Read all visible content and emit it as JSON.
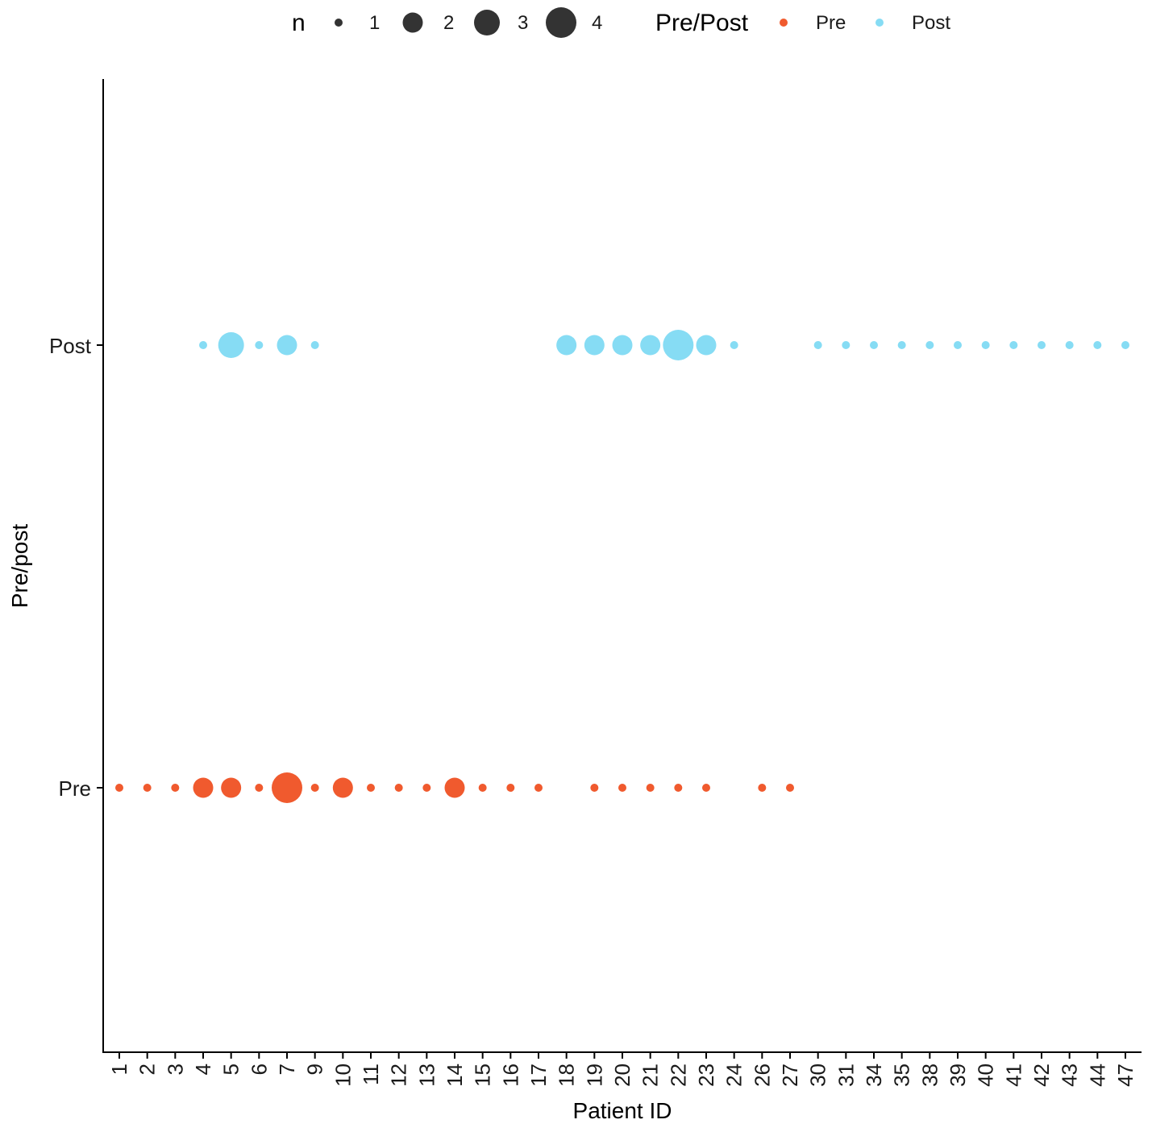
{
  "chart_data": {
    "type": "scatter",
    "title": "",
    "xlabel": "Patient ID",
    "ylabel": "Pre/post",
    "categories": [
      "1",
      "2",
      "3",
      "4",
      "5",
      "6",
      "7",
      "9",
      "10",
      "11",
      "12",
      "13",
      "14",
      "15",
      "16",
      "17",
      "18",
      "19",
      "20",
      "21",
      "22",
      "23",
      "24",
      "26",
      "27",
      "30",
      "31",
      "34",
      "35",
      "38",
      "39",
      "40",
      "41",
      "42",
      "43",
      "44",
      "47"
    ],
    "y_categories": [
      "Pre",
      "Post"
    ],
    "series": [
      {
        "name": "Pre",
        "color": "#f05a2e",
        "points": [
          {
            "x": "1",
            "n": 1
          },
          {
            "x": "2",
            "n": 1
          },
          {
            "x": "3",
            "n": 1
          },
          {
            "x": "4",
            "n": 2
          },
          {
            "x": "5",
            "n": 2
          },
          {
            "x": "6",
            "n": 1
          },
          {
            "x": "7",
            "n": 4
          },
          {
            "x": "9",
            "n": 1
          },
          {
            "x": "10",
            "n": 2
          },
          {
            "x": "11",
            "n": 1
          },
          {
            "x": "12",
            "n": 1
          },
          {
            "x": "13",
            "n": 1
          },
          {
            "x": "14",
            "n": 2
          },
          {
            "x": "15",
            "n": 1
          },
          {
            "x": "16",
            "n": 1
          },
          {
            "x": "17",
            "n": 1
          },
          {
            "x": "19",
            "n": 1
          },
          {
            "x": "20",
            "n": 1
          },
          {
            "x": "21",
            "n": 1
          },
          {
            "x": "22",
            "n": 1
          },
          {
            "x": "23",
            "n": 1
          },
          {
            "x": "26",
            "n": 1
          },
          {
            "x": "27",
            "n": 1
          }
        ]
      },
      {
        "name": "Post",
        "color": "#86dcf4",
        "points": [
          {
            "x": "4",
            "n": 1
          },
          {
            "x": "5",
            "n": 3
          },
          {
            "x": "6",
            "n": 1
          },
          {
            "x": "7",
            "n": 2
          },
          {
            "x": "9",
            "n": 1
          },
          {
            "x": "18",
            "n": 2
          },
          {
            "x": "19",
            "n": 2
          },
          {
            "x": "20",
            "n": 2
          },
          {
            "x": "21",
            "n": 2
          },
          {
            "x": "22",
            "n": 4
          },
          {
            "x": "23",
            "n": 2
          },
          {
            "x": "24",
            "n": 1
          },
          {
            "x": "30",
            "n": 1
          },
          {
            "x": "31",
            "n": 1
          },
          {
            "x": "34",
            "n": 1
          },
          {
            "x": "35",
            "n": 1
          },
          {
            "x": "38",
            "n": 1
          },
          {
            "x": "39",
            "n": 1
          },
          {
            "x": "40",
            "n": 1
          },
          {
            "x": "41",
            "n": 1
          },
          {
            "x": "42",
            "n": 1
          },
          {
            "x": "43",
            "n": 1
          },
          {
            "x": "44",
            "n": 1
          },
          {
            "x": "47",
            "n": 1
          }
        ]
      }
    ],
    "legend": {
      "position": "top",
      "size_title": "n",
      "size_entries": [
        {
          "label": "1",
          "n": 1
        },
        {
          "label": "2",
          "n": 2
        },
        {
          "label": "3",
          "n": 3
        },
        {
          "label": "4",
          "n": 4
        }
      ],
      "size_color": "#333333",
      "color_title": "Pre/Post",
      "color_entries": [
        {
          "label": "Pre",
          "color": "#f05a2e"
        },
        {
          "label": "Post",
          "color": "#86dcf4"
        }
      ]
    },
    "grid": false
  }
}
